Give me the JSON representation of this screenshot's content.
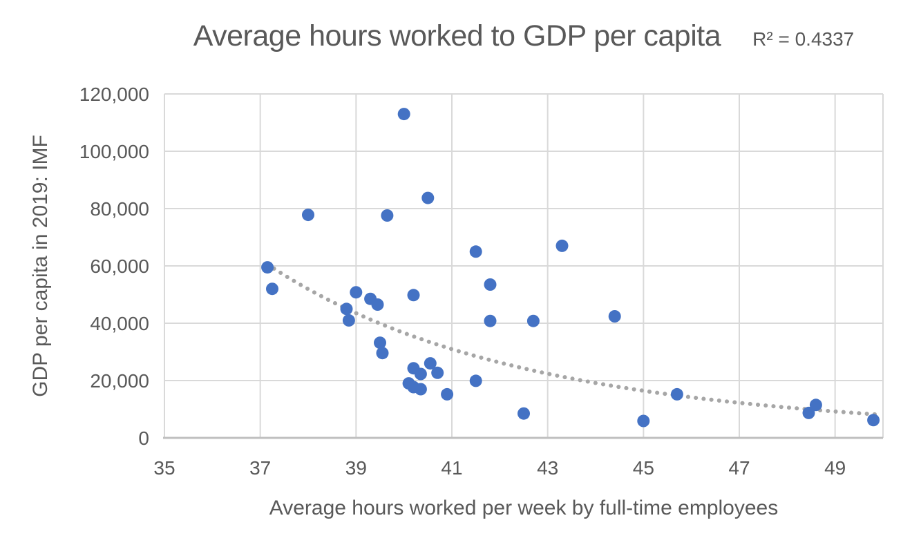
{
  "title": "Average hours worked to GDP per capita",
  "trendline_label": "R² = 0.4337",
  "x_axis": {
    "title": "Average hours worked per week by full-time employees",
    "min": 35,
    "max": 50,
    "tick_values": [
      35,
      37,
      39,
      41,
      43,
      45,
      47,
      49
    ],
    "tick_labels": [
      "35",
      "37",
      "39",
      "41",
      "43",
      "45",
      "47",
      "49"
    ]
  },
  "y_axis": {
    "title": "GDP per capita in 2019: IMF",
    "min": 0,
    "max": 120000,
    "tick_values": [
      0,
      20000,
      40000,
      60000,
      80000,
      100000,
      120000
    ],
    "tick_labels": [
      "0",
      "20,000",
      "40,000",
      "60,000",
      "80,000",
      "100,000",
      "120,000"
    ]
  },
  "chart_data": {
    "type": "scatter",
    "title": "Average hours worked to GDP per capita",
    "xlabel": "Average hours worked per week by full-time employees",
    "ylabel": "GDP per capita in 2019: IMF",
    "xlim": [
      35,
      50
    ],
    "ylim": [
      0,
      120000
    ],
    "grid": true,
    "points": [
      [
        37.15,
        59500
      ],
      [
        37.25,
        52000
      ],
      [
        38.0,
        77800
      ],
      [
        38.8,
        45000
      ],
      [
        38.85,
        41000
      ],
      [
        39.0,
        50800
      ],
      [
        39.3,
        48500
      ],
      [
        39.45,
        46500
      ],
      [
        39.5,
        33200
      ],
      [
        39.55,
        29600
      ],
      [
        39.65,
        77600
      ],
      [
        40.0,
        113000
      ],
      [
        40.1,
        19000
      ],
      [
        40.2,
        49800
      ],
      [
        40.2,
        24300
      ],
      [
        40.2,
        17700
      ],
      [
        40.35,
        22300
      ],
      [
        40.35,
        17000
      ],
      [
        40.55,
        26000
      ],
      [
        40.7,
        22700
      ],
      [
        40.5,
        83700
      ],
      [
        40.9,
        15200
      ],
      [
        41.5,
        65000
      ],
      [
        41.5,
        19900
      ],
      [
        41.8,
        53500
      ],
      [
        41.8,
        40800
      ],
      [
        42.5,
        8500
      ],
      [
        42.7,
        40800
      ],
      [
        43.3,
        67000
      ],
      [
        44.4,
        42400
      ],
      [
        45.0,
        5900
      ],
      [
        45.7,
        15200
      ],
      [
        48.45,
        8700
      ],
      [
        48.6,
        11500
      ],
      [
        49.8,
        6200
      ]
    ],
    "trendline": {
      "type": "power",
      "base_y": 60000,
      "base_x": 37.2,
      "exponent": -6.8,
      "x_start": 37.15,
      "x_end": 49.95,
      "r_squared": 0.4337
    },
    "colors": {
      "point": "#4472C4",
      "trendline": "#A6A6A6",
      "gridline": "#D9D9D9",
      "axis_line": "#BFBFBF",
      "text": "#595959"
    }
  }
}
